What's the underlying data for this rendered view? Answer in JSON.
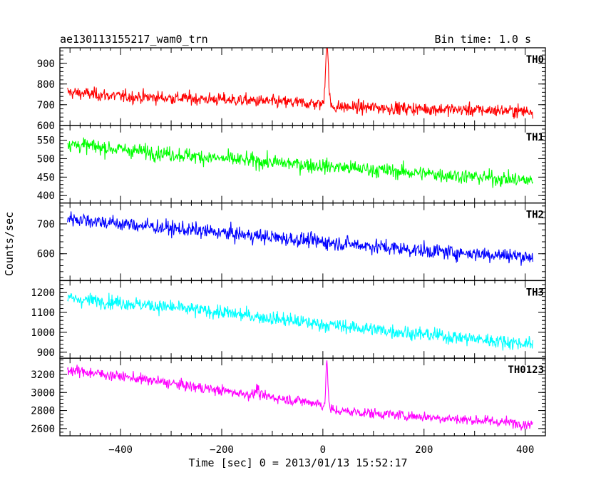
{
  "chart_data": {
    "type": "line",
    "title": "ae130113155217_wam0_trn",
    "subtitle": "Bin time: 1.0 s",
    "xlabel": "Time [sec] 0 = 2013/01/13 15:52:17",
    "ylabel": "Counts/sec",
    "xlim": [
      -520,
      440
    ],
    "xticks": [
      -400,
      -200,
      0,
      200,
      400
    ],
    "x_tick_labels": [
      "−400",
      "−200",
      "0",
      "200",
      "400"
    ],
    "x_range": [
      -505,
      415
    ],
    "panels": [
      {
        "name": "TH0",
        "color": "#ff0000",
        "ylim": [
          600,
          975
        ],
        "yticks": [
          600,
          700,
          800,
          900
        ],
        "y_tick_labels": [
          "600",
          "700",
          "800",
          "900"
        ],
        "trend": [
          [
            -505,
            760
          ],
          [
            -400,
            740
          ],
          [
            -200,
            725
          ],
          [
            -10,
            705
          ],
          [
            20,
            690
          ],
          [
            200,
            680
          ],
          [
            415,
            668
          ]
        ],
        "noise": 40,
        "peaks": [
          {
            "x": 8,
            "peak": 1000,
            "width": 4
          }
        ]
      },
      {
        "name": "TH1",
        "color": "#00ff00",
        "ylim": [
          380,
          590
        ],
        "yticks": [
          400,
          450,
          500,
          550
        ],
        "y_tick_labels": [
          "400",
          "450",
          "500",
          "550"
        ],
        "trend": [
          [
            -505,
            540
          ],
          [
            -400,
            525
          ],
          [
            -200,
            500
          ],
          [
            0,
            480
          ],
          [
            200,
            460
          ],
          [
            415,
            440
          ]
        ],
        "noise": 26,
        "peaks": []
      },
      {
        "name": "TH2",
        "color": "#0000ff",
        "ylim": [
          510,
          770
        ],
        "yticks": [
          600,
          700
        ],
        "y_tick_labels": [
          "600",
          "700"
        ],
        "trend": [
          [
            -505,
            720
          ],
          [
            -400,
            700
          ],
          [
            -200,
            670
          ],
          [
            0,
            640
          ],
          [
            200,
            610
          ],
          [
            415,
            590
          ]
        ],
        "noise": 32,
        "peaks": []
      },
      {
        "name": "TH3",
        "color": "#00ffff",
        "ylim": [
          870,
          1260
        ],
        "yticks": [
          900,
          1000,
          1100,
          1200
        ],
        "y_tick_labels": [
          "900",
          "1000",
          "1100",
          "1200"
        ],
        "trend": [
          [
            -505,
            1170
          ],
          [
            -400,
            1150
          ],
          [
            -200,
            1100
          ],
          [
            0,
            1040
          ],
          [
            200,
            990
          ],
          [
            415,
            940
          ]
        ],
        "noise": 45,
        "peaks": []
      },
      {
        "name": "TH0123",
        "color": "#ff00ff",
        "ylim": [
          2520,
          3380
        ],
        "yticks": [
          2600,
          2800,
          3000,
          3200
        ],
        "y_tick_labels": [
          "2600",
          "2800",
          "3000",
          "3200"
        ],
        "trend": [
          [
            -505,
            3250
          ],
          [
            -400,
            3180
          ],
          [
            -200,
            3020
          ],
          [
            -10,
            2880
          ],
          [
            20,
            2800
          ],
          [
            200,
            2730
          ],
          [
            415,
            2650
          ]
        ],
        "noise": 75,
        "peaks": [
          {
            "x": 8,
            "peak": 3320,
            "width": 3
          },
          {
            "x": -130,
            "peak": 3050,
            "width": 4
          }
        ]
      }
    ]
  }
}
